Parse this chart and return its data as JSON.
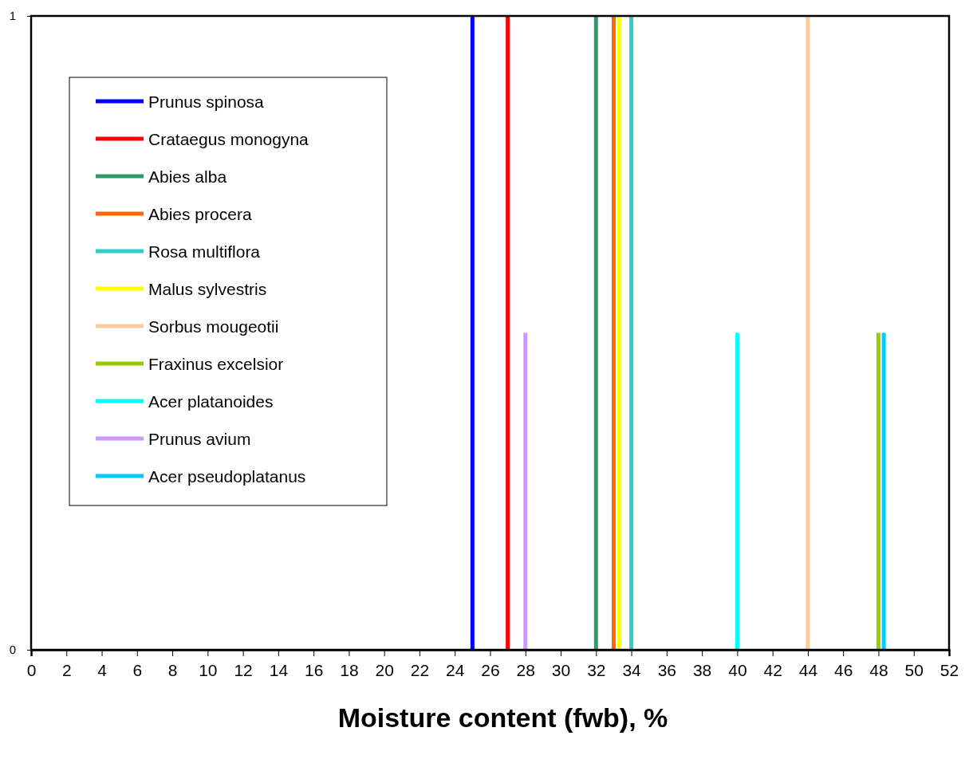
{
  "chart_data": {
    "type": "line",
    "xlabel": "Moisture content (fwb), %",
    "xlim": [
      0,
      52
    ],
    "xticks": [
      0,
      2,
      4,
      6,
      8,
      10,
      12,
      14,
      16,
      18,
      20,
      22,
      24,
      26,
      28,
      30,
      32,
      34,
      36,
      38,
      40,
      42,
      44,
      46,
      48,
      50,
      52
    ],
    "ylim": [
      0,
      1
    ],
    "yticks": [
      0,
      1
    ],
    "grid": false,
    "legend": "top left",
    "marker": "none",
    "line_style": "solid",
    "series": [
      {
        "name": "Prunus spinosa",
        "color": "#0000ff",
        "x": [
          25,
          25
        ],
        "values": [
          0,
          1
        ]
      },
      {
        "name": "Crataegus monogyna",
        "color": "#ff0000",
        "x": [
          27,
          27
        ],
        "values": [
          0,
          1
        ]
      },
      {
        "name": "Abies alba",
        "color": "#339966",
        "x": [
          32,
          32
        ],
        "values": [
          0,
          1
        ]
      },
      {
        "name": "Abies procera",
        "color": "#ff6600",
        "x": [
          33,
          33
        ],
        "values": [
          0,
          1
        ]
      },
      {
        "name": "Rosa multiflora",
        "color": "#33cccc",
        "x": [
          34,
          34
        ],
        "values": [
          0,
          1
        ]
      },
      {
        "name": "Malus sylvestris",
        "color": "#ffff00",
        "x": [
          33.3,
          33.3
        ],
        "values": [
          0,
          1
        ]
      },
      {
        "name": "Sorbus mougeotii",
        "color": "#ffcc99",
        "x": [
          44,
          44
        ],
        "values": [
          0,
          1
        ]
      },
      {
        "name": "Fraxinus excelsior",
        "color": "#99cc00",
        "x": [
          48,
          48
        ],
        "values": [
          0,
          0.5
        ]
      },
      {
        "name": "Acer platanoides",
        "color": "#00ffff",
        "x": [
          40,
          40
        ],
        "values": [
          0,
          0.5
        ]
      },
      {
        "name": "Prunus avium",
        "color": "#cc99ff",
        "x": [
          28,
          28
        ],
        "values": [
          0,
          0.5
        ]
      },
      {
        "name": "Acer pseudoplatanus",
        "color": "#00ccff",
        "x": [
          48.3,
          48.3
        ],
        "values": [
          0,
          0.5
        ]
      }
    ]
  }
}
